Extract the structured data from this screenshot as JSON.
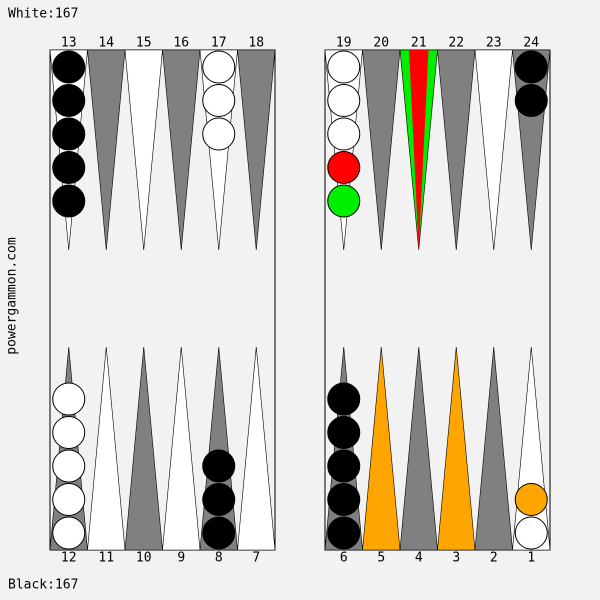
{
  "header": {
    "score": "White:167"
  },
  "footer": {
    "score": "Black:167"
  },
  "side_label": "powergammon.com",
  "top_points": [
    {
      "label": "13",
      "fill": "#ffffff",
      "checkers": [
        "#000000",
        "#000000",
        "#000000",
        "#000000",
        "#000000"
      ]
    },
    {
      "label": "14",
      "fill": "#808080",
      "checkers": []
    },
    {
      "label": "15",
      "fill": "#ffffff",
      "checkers": []
    },
    {
      "label": "16",
      "fill": "#808080",
      "checkers": []
    },
    {
      "label": "17",
      "fill": "#ffffff",
      "checkers": [
        "#ffffff",
        "#ffffff",
        "#ffffff"
      ]
    },
    {
      "label": "18",
      "fill": "#808080",
      "checkers": []
    },
    {
      "label": "19",
      "fill": "#ffffff",
      "checkers": [
        "#ffffff",
        "#ffffff",
        "#ffffff",
        "#ff0000",
        "#00ee00"
      ]
    },
    {
      "label": "20",
      "fill": "#808080",
      "checkers": []
    },
    {
      "label": "21",
      "fill": "#00ee00",
      "inner": "#ff0000",
      "checkers": []
    },
    {
      "label": "22",
      "fill": "#808080",
      "checkers": []
    },
    {
      "label": "23",
      "fill": "#ffffff",
      "checkers": []
    },
    {
      "label": "24",
      "fill": "#808080",
      "checkers": [
        "#000000",
        "#000000"
      ]
    }
  ],
  "bottom_points": [
    {
      "label": "12",
      "fill": "#808080",
      "checkers": [
        "#ffffff",
        "#ffffff",
        "#ffffff",
        "#ffffff",
        "#ffffff"
      ]
    },
    {
      "label": "11",
      "fill": "#ffffff",
      "checkers": []
    },
    {
      "label": "10",
      "fill": "#808080",
      "checkers": []
    },
    {
      "label": "9",
      "fill": "#ffffff",
      "checkers": []
    },
    {
      "label": "8",
      "fill": "#808080",
      "checkers": [
        "#000000",
        "#000000",
        "#000000"
      ]
    },
    {
      "label": "7",
      "fill": "#ffffff",
      "checkers": []
    },
    {
      "label": "6",
      "fill": "#808080",
      "checkers": [
        "#000000",
        "#000000",
        "#000000",
        "#000000",
        "#000000"
      ]
    },
    {
      "label": "5",
      "fill": "#ffa500",
      "checkers": []
    },
    {
      "label": "4",
      "fill": "#808080",
      "checkers": []
    },
    {
      "label": "3",
      "fill": "#ffa500",
      "checkers": []
    },
    {
      "label": "2",
      "fill": "#808080",
      "checkers": []
    },
    {
      "label": "1",
      "fill": "#ffffff",
      "checkers": [
        "#ffffff",
        "#ffa500"
      ]
    }
  ]
}
